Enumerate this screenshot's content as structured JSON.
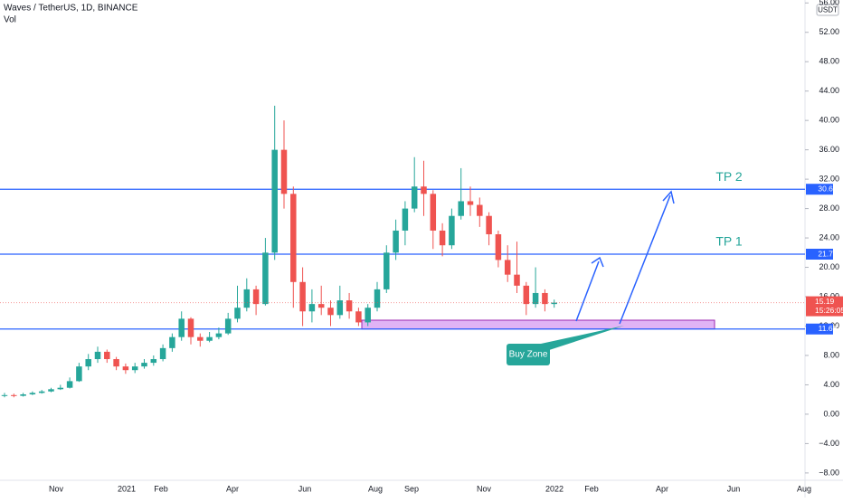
{
  "chart_data": {
    "type": "candlestick",
    "title": "Waves / TetherUS, 1D, BINANCE",
    "subtitle": "Vol",
    "currency": "USDT",
    "up_color": "#26a69a",
    "down_color": "#ef5350",
    "ylim": [
      -9,
      56.4
    ],
    "yticks": [
      {
        "value": 56,
        "label": "56.00"
      },
      {
        "value": 52,
        "label": "52.00"
      },
      {
        "value": 48,
        "label": "48.00"
      },
      {
        "value": 44,
        "label": "44.00"
      },
      {
        "value": 40,
        "label": "40.00"
      },
      {
        "value": 36,
        "label": "36.00"
      },
      {
        "value": 32,
        "label": "32.00"
      },
      {
        "value": 28,
        "label": "28.00"
      },
      {
        "value": 24,
        "label": "24.00"
      },
      {
        "value": 20,
        "label": "20.00"
      },
      {
        "value": 16,
        "label": "16.00"
      },
      {
        "value": 12,
        "label": "12.00"
      },
      {
        "value": 8,
        "label": "8.00"
      },
      {
        "value": 4,
        "label": "4.00"
      },
      {
        "value": 0,
        "label": "0.00"
      },
      {
        "value": -4,
        "label": "−4.00"
      },
      {
        "value": -8,
        "label": "−8.00"
      }
    ],
    "xticks": [
      "Nov",
      "2021",
      "Feb",
      "Apr",
      "Jun",
      "Aug",
      "Sep",
      "Nov",
      "2022",
      "Feb",
      "Apr",
      "Jun",
      "Aug"
    ],
    "ohlc": [
      [
        2.5,
        2.9,
        2.3,
        2.6
      ],
      [
        2.6,
        2.8,
        2.3,
        2.5
      ],
      [
        2.5,
        2.9,
        2.4,
        2.7
      ],
      [
        2.7,
        3.1,
        2.6,
        2.9
      ],
      [
        2.9,
        3.3,
        2.8,
        3.1
      ],
      [
        3.1,
        3.6,
        3.0,
        3.4
      ],
      [
        3.4,
        4.0,
        3.3,
        3.6
      ],
      [
        3.6,
        5.0,
        3.5,
        4.5
      ],
      [
        4.5,
        7.0,
        4.4,
        6.5
      ],
      [
        6.5,
        8.2,
        6.0,
        7.5
      ],
      [
        7.5,
        9.2,
        7.0,
        8.5
      ],
      [
        8.5,
        8.8,
        7.0,
        7.5
      ],
      [
        7.5,
        7.8,
        6.0,
        6.5
      ],
      [
        6.5,
        6.9,
        5.5,
        6.0
      ],
      [
        6.0,
        7.0,
        5.6,
        6.5
      ],
      [
        6.5,
        7.5,
        6.2,
        7.0
      ],
      [
        7.0,
        8.0,
        6.6,
        7.5
      ],
      [
        7.5,
        9.5,
        7.2,
        9.0
      ],
      [
        9.0,
        11.0,
        8.5,
        10.5
      ],
      [
        10.5,
        14.0,
        10.0,
        13.0
      ],
      [
        13.0,
        13.2,
        9.5,
        10.5
      ],
      [
        10.5,
        11.0,
        9.2,
        10.0
      ],
      [
        10.0,
        11.2,
        9.8,
        10.5
      ],
      [
        10.5,
        11.8,
        10.2,
        11.0
      ],
      [
        11.0,
        13.8,
        10.8,
        13.0
      ],
      [
        13.0,
        17.5,
        12.5,
        14.5
      ],
      [
        14.5,
        18.5,
        14.0,
        17.0
      ],
      [
        17.0,
        17.5,
        13.5,
        15.0
      ],
      [
        15.0,
        24.0,
        14.8,
        22.0
      ],
      [
        22.0,
        42.0,
        21.0,
        36.0
      ],
      [
        36.0,
        40.0,
        28.0,
        30.0
      ],
      [
        30.0,
        31.0,
        14.5,
        18.0
      ],
      [
        18.0,
        20.0,
        12.0,
        14.0
      ],
      [
        14.0,
        17.0,
        12.5,
        15.0
      ],
      [
        15.0,
        17.5,
        13.5,
        14.5
      ],
      [
        14.5,
        15.5,
        12.0,
        13.5
      ],
      [
        13.5,
        17.5,
        13.0,
        15.5
      ],
      [
        15.5,
        16.5,
        13.0,
        14.0
      ],
      [
        14.0,
        14.5,
        12.0,
        12.5
      ],
      [
        12.5,
        15.0,
        12.0,
        14.5
      ],
      [
        14.5,
        18.0,
        14.0,
        17.0
      ],
      [
        17.0,
        23.0,
        16.5,
        22.0
      ],
      [
        22.0,
        26.5,
        21.0,
        25.0
      ],
      [
        25.0,
        29.0,
        23.0,
        28.0
      ],
      [
        28.0,
        35.0,
        27.5,
        31.0
      ],
      [
        31.0,
        34.5,
        27.0,
        30.0
      ],
      [
        30.0,
        30.5,
        22.5,
        25.0
      ],
      [
        25.0,
        26.0,
        21.5,
        23.0
      ],
      [
        23.0,
        28.0,
        22.5,
        27.0
      ],
      [
        27.0,
        33.5,
        26.5,
        29.0
      ],
      [
        29.0,
        31.0,
        27.0,
        28.5
      ],
      [
        28.5,
        29.5,
        25.5,
        27.0
      ],
      [
        27.0,
        27.5,
        23.0,
        24.5
      ],
      [
        24.5,
        25.0,
        20.0,
        21.0
      ],
      [
        21.0,
        23.0,
        18.0,
        19.0
      ],
      [
        19.0,
        23.5,
        16.5,
        17.5
      ],
      [
        17.5,
        18.0,
        13.5,
        15.0
      ],
      [
        15.0,
        20.0,
        14.5,
        16.5
      ],
      [
        16.5,
        17.0,
        14.0,
        15.0
      ],
      [
        15.0,
        15.6,
        14.5,
        15.19
      ]
    ],
    "levels": [
      {
        "value": 30.63,
        "label": "TP 2",
        "color": "#2962ff"
      },
      {
        "value": 21.79,
        "label": "TP 1",
        "color": "#2962ff"
      },
      {
        "value": {
          "value": 11.6,
          "label": "11.60"
        },
        "color": "#2962ff"
      }
    ],
    "last_price": 15.19,
    "countdown": "15:26:05",
    "buy_zone": {
      "label": "Buy Zone",
      "range": [
        11.6,
        12.8
      ],
      "color": "#e1b3f5"
    }
  }
}
